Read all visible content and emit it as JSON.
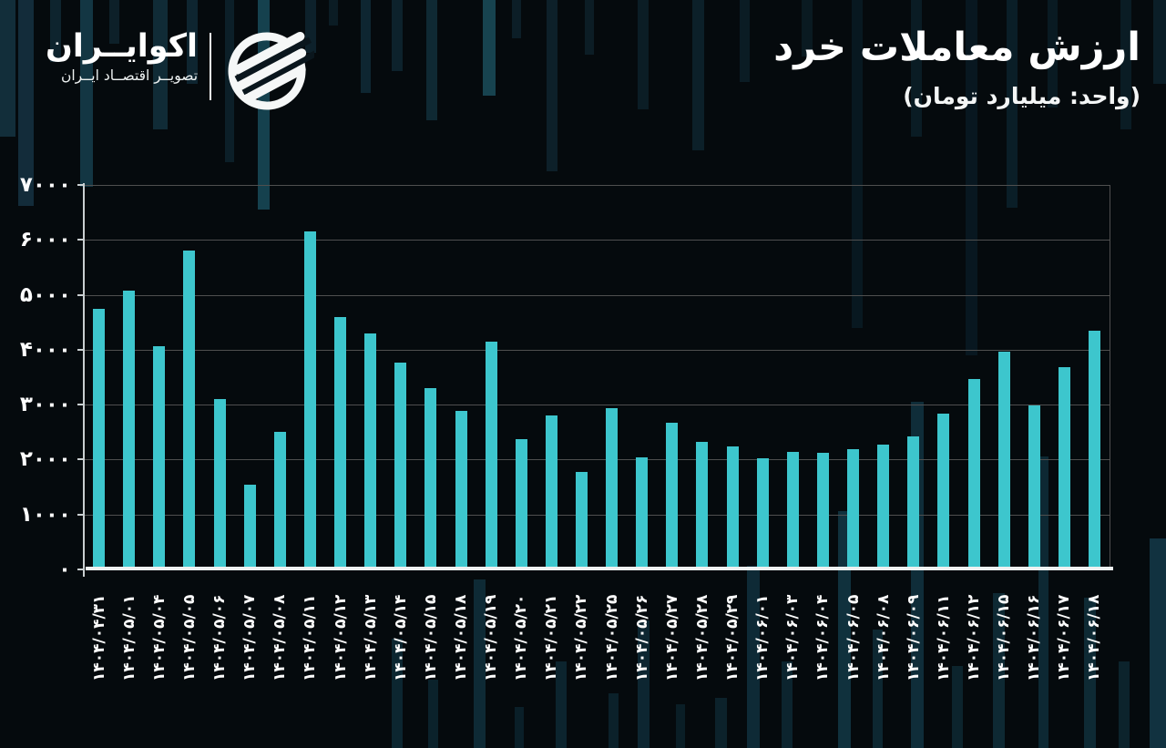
{
  "page": {
    "background": "#050a0d"
  },
  "logo": {
    "brand": "اکوایــران",
    "tagline": "تصویــر اقتصــاد ایــران"
  },
  "header": {
    "title": "ارزش معاملات خرد",
    "subtitle": "(واحد: میلیارد تومان)"
  },
  "chart_data": {
    "type": "bar",
    "title": "ارزش معاملات خرد",
    "unit_label": "(واحد: میلیارد تومان)",
    "bar_color": "#3dc6cd",
    "grid": true,
    "legend": false,
    "ylim": [
      0,
      7000
    ],
    "ytick_step": 1000,
    "ytick_labels_top_to_bottom": [
      "۷۰۰۰",
      "۶۰۰۰",
      "۵۰۰۰",
      "۴۰۰۰",
      "۳۰۰۰",
      "۲۰۰۰",
      "۱۰۰۰",
      "۰"
    ],
    "categories": [
      "۱۴۰۴/۰۴/۳۱",
      "۱۴۰۴/۰۵/۰۱",
      "۱۴۰۴/۰۵/۰۴",
      "۱۴۰۴/۰۵/۰۵",
      "۱۴۰۴/۰۵/۰۶",
      "۱۴۰۴/۰۵/۰۷",
      "۱۴۰۴/۰۵/۰۸",
      "۱۴۰۴/۰۵/۱۱",
      "۱۴۰۴/۰۵/۱۲",
      "۱۴۰۴/۰۵/۱۳",
      "۱۴۰۴/۰۵/۱۴",
      "۱۴۰۴/۰۵/۱۵",
      "۱۴۰۴/۰۵/۱۸",
      "۱۴۰۴/۰۵/۱۹",
      "۱۴۰۴/۰۵/۲۰",
      "۱۴۰۴/۰۵/۲۱",
      "۱۴۰۴/۰۵/۲۲",
      "۱۴۰۴/۰۵/۲۵",
      "۱۴۰۴/۰۵/۲۶",
      "۱۴۰۴/۰۵/۲۷",
      "۱۴۰۴/۰۵/۲۸",
      "۱۴۰۴/۰۵/۲۹",
      "۱۴۰۴/۰۶/۰۱",
      "۱۴۰۴/۰۶/۰۳",
      "۱۴۰۴/۰۶/۰۴",
      "۱۴۰۴/۰۶/۰۵",
      "۱۴۰۴/۰۶/۰۸",
      "۱۴۰۴/۰۶/۰۹",
      "۱۴۰۴/۰۶/۱۱",
      "۱۴۰۴/۰۶/۱۲",
      "۱۴۰۴/۰۶/۱۵",
      "۱۴۰۴/۰۶/۱۶",
      "۱۴۰۴/۰۶/۱۷",
      "۱۴۰۴/۰۶/۱۸"
    ],
    "values": [
      4750,
      5070,
      4070,
      5800,
      3100,
      1550,
      2500,
      6160,
      4600,
      4290,
      3770,
      3310,
      2880,
      4150,
      2380,
      2810,
      1780,
      2940,
      2040,
      2670,
      2330,
      2240,
      2030,
      2140,
      2130,
      2190,
      2280,
      2430,
      2840,
      3460,
      3960,
      2990,
      3690,
      4340
    ]
  }
}
